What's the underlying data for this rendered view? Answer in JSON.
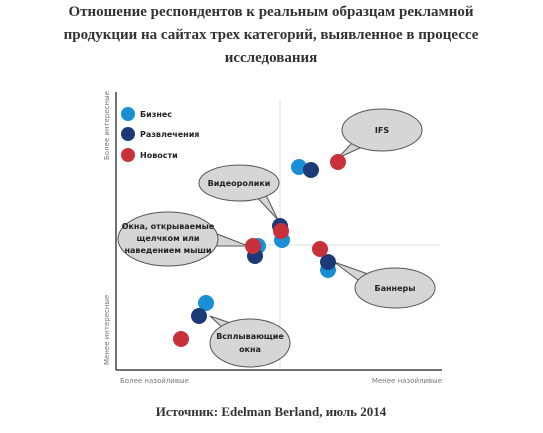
{
  "header": {
    "title": [
      "Отношение респондентов к реальным образцам рекламной",
      "продукции на сайтах трех категорий, выявленное в процессе",
      "исследования"
    ]
  },
  "legend": [
    "Бизнес",
    "Развлечения",
    "Новости"
  ],
  "axes": {
    "top": "Более интересные",
    "bottom": "Менее интересные",
    "left": "Более назойливые",
    "right": "Менее назойливые"
  },
  "callouts": [
    "IFS",
    "Видеоролики",
    [
      "Окна, открываемые",
      "щелчком или",
      "наведением мыши"
    ],
    "Баннеры",
    [
      "Всплывающие",
      "окна"
    ]
  ],
  "footer": {
    "source": "Источник: Edelman Berland, июль 2014"
  }
}
